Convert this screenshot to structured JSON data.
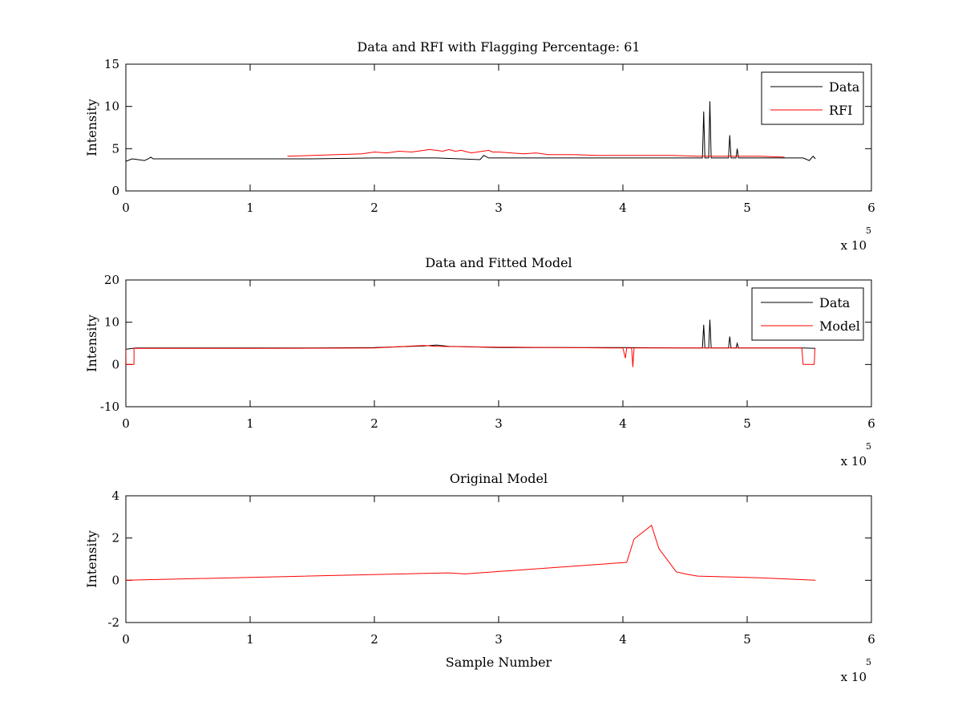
{
  "chart_data": [
    {
      "type": "line",
      "title": "Data and RFI with Flagging Percentage: 61",
      "xlabel": "",
      "ylabel": "Intensity",
      "xlim": [
        0,
        6
      ],
      "ylim": [
        0,
        15
      ],
      "xticks": [
        0,
        1,
        2,
        3,
        4,
        5,
        6
      ],
      "xtick_labels": [
        "0",
        "1",
        "2",
        "3",
        "4",
        "5",
        "6"
      ],
      "yticks": [
        0,
        5,
        10,
        15
      ],
      "ytick_labels": [
        "0",
        "5",
        "10",
        "15"
      ],
      "x_multiplier": "x 10",
      "x_multiplier_exp": "5",
      "legend": {
        "location": "top-right",
        "entries": [
          "Data",
          "RFI"
        ]
      },
      "series": [
        {
          "name": "Data",
          "color": "#000000",
          "x": [
            0,
            0.05,
            0.1,
            0.15,
            0.18,
            0.2,
            0.22,
            0.5,
            1.0,
            1.5,
            2.0,
            2.5,
            2.85,
            2.88,
            2.92,
            3.5,
            4.0,
            4.5,
            4.64,
            4.65,
            4.66,
            4.69,
            4.7,
            4.71,
            4.85,
            4.86,
            4.87,
            4.91,
            4.92,
            4.93,
            5.0,
            5.45,
            5.5,
            5.53,
            5.55
          ],
          "y": [
            3.5,
            3.8,
            3.7,
            3.6,
            3.8,
            4.0,
            3.8,
            3.8,
            3.8,
            3.8,
            3.9,
            3.9,
            3.7,
            4.2,
            3.9,
            3.9,
            3.9,
            3.9,
            3.9,
            9.4,
            3.9,
            3.9,
            10.6,
            3.9,
            3.9,
            6.6,
            3.9,
            3.9,
            5.0,
            3.9,
            3.9,
            3.9,
            3.6,
            4.1,
            3.8
          ]
        },
        {
          "name": "RFI",
          "color": "#ff0000",
          "x": [
            1.3,
            1.5,
            1.7,
            1.9,
            2.0,
            2.1,
            2.2,
            2.3,
            2.4,
            2.44,
            2.5,
            2.55,
            2.6,
            2.65,
            2.7,
            2.75,
            2.78,
            2.92,
            2.95,
            3.0,
            3.1,
            3.2,
            3.3,
            3.4,
            3.5,
            3.6,
            3.8,
            4.0,
            4.2,
            4.4,
            4.6,
            4.9,
            5.1,
            5.3
          ],
          "y": [
            4.1,
            4.2,
            4.3,
            4.4,
            4.6,
            4.5,
            4.7,
            4.6,
            4.8,
            4.9,
            4.8,
            4.7,
            4.9,
            4.7,
            4.8,
            4.6,
            4.5,
            4.8,
            4.6,
            4.6,
            4.5,
            4.4,
            4.5,
            4.3,
            4.3,
            4.3,
            4.2,
            4.2,
            4.2,
            4.2,
            4.1,
            4.1,
            4.1,
            4.0
          ]
        }
      ]
    },
    {
      "type": "line",
      "title": "Data and Fitted Model",
      "xlabel": "",
      "ylabel": "Intensity",
      "xlim": [
        0,
        6
      ],
      "ylim": [
        -10,
        20
      ],
      "xticks": [
        0,
        1,
        2,
        3,
        4,
        5,
        6
      ],
      "xtick_labels": [
        "0",
        "1",
        "2",
        "3",
        "4",
        "5",
        "6"
      ],
      "yticks": [
        -10,
        0,
        10,
        20
      ],
      "ytick_labels": [
        "-10",
        "0",
        "10",
        "20"
      ],
      "x_multiplier": "x 10",
      "x_multiplier_exp": "5",
      "legend": {
        "location": "top-right",
        "entries": [
          "Data",
          "Model"
        ]
      },
      "series": [
        {
          "name": "Data",
          "color": "#000000",
          "x": [
            0,
            0.08,
            0.5,
            1.0,
            1.5,
            2.0,
            2.4,
            2.5,
            2.6,
            2.75,
            3.0,
            3.5,
            4.0,
            4.5,
            4.64,
            4.65,
            4.66,
            4.69,
            4.7,
            4.71,
            4.85,
            4.86,
            4.87,
            4.91,
            4.92,
            4.93,
            5.2,
            5.45,
            5.55
          ],
          "y": [
            3.6,
            3.9,
            3.9,
            3.9,
            3.9,
            4.0,
            4.4,
            4.6,
            4.3,
            4.2,
            4.0,
            4.0,
            4.0,
            3.9,
            3.9,
            9.4,
            3.9,
            3.9,
            10.6,
            3.9,
            3.9,
            6.6,
            3.9,
            3.9,
            5.0,
            3.9,
            3.9,
            3.9,
            3.8
          ]
        },
        {
          "name": "Model",
          "color": "#ff0000",
          "x": [
            0,
            0.001,
            0.065,
            0.066,
            1.0,
            2.0,
            2.4,
            2.5,
            3.0,
            4.0,
            4.02,
            4.03,
            4.07,
            4.08,
            4.09,
            4.5,
            5.0,
            5.44,
            5.45,
            5.54,
            5.545
          ],
          "y": [
            3.8,
            0,
            0,
            3.8,
            3.8,
            3.9,
            4.5,
            4.3,
            4.1,
            3.9,
            1.5,
            3.9,
            3.9,
            -0.6,
            3.9,
            3.9,
            3.9,
            3.9,
            0,
            0,
            3.8
          ]
        }
      ]
    },
    {
      "type": "line",
      "title": "Original Model",
      "xlabel": "Sample Number",
      "ylabel": "Intensity",
      "xlim": [
        0,
        6
      ],
      "ylim": [
        -2,
        4
      ],
      "xticks": [
        0,
        1,
        2,
        3,
        4,
        5,
        6
      ],
      "xtick_labels": [
        "0",
        "1",
        "2",
        "3",
        "4",
        "5",
        "6"
      ],
      "yticks": [
        -2,
        0,
        2,
        4
      ],
      "ytick_labels": [
        "-2",
        "0",
        "2",
        "4"
      ],
      "x_multiplier": "x 10",
      "x_multiplier_exp": "5",
      "legend": null,
      "series": [
        {
          "name": "Original Model",
          "color": "#ff0000",
          "x": [
            0,
            2.59,
            2.73,
            4.03,
            4.09,
            4.23,
            4.29,
            4.43,
            4.5,
            4.6,
            4.9,
            5.1,
            5.55
          ],
          "y": [
            0,
            0.35,
            0.3,
            0.85,
            1.95,
            2.6,
            1.5,
            0.4,
            0.3,
            0.2,
            0.15,
            0.12,
            0
          ]
        }
      ]
    }
  ]
}
